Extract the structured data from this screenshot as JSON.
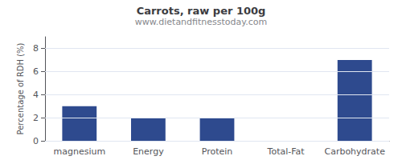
{
  "chart_data": {
    "type": "bar",
    "title": "Carrots, raw per 100g",
    "subtitle": "www.dietandfitnesstoday.com",
    "categories": [
      "magnesium",
      "Energy",
      "Protein",
      "Total-Fat",
      "Carbohydrate"
    ],
    "values": [
      3.0,
      2.0,
      2.0,
      0.0,
      7.0
    ],
    "color": "#2e4a8e",
    "ylabel": "Percentage of RDH (%)",
    "ylim": [
      0,
      9
    ],
    "yticks": [
      0,
      2,
      4,
      6,
      8
    ],
    "grid": true
  }
}
